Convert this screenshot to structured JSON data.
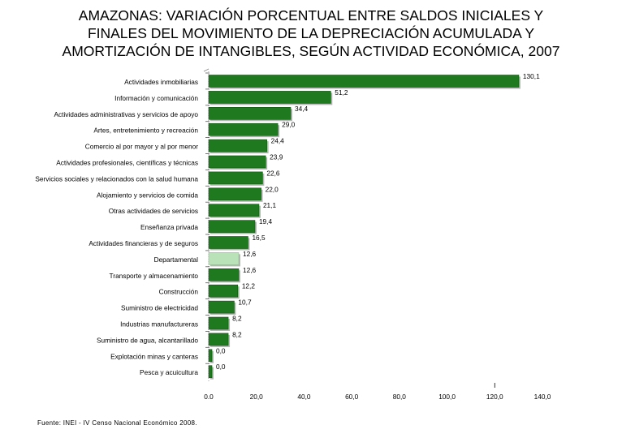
{
  "title_lines": [
    "AMAZONAS: VARIACIÓN PORCENTUAL ENTRE SALDOS INICIALES Y",
    "FINALES DEL MOVIMIENTO DE LA DEPRECIACIÓN ACUMULADA Y",
    "AMORTIZACIÓN DE INTANGIBLES, SEGÚN ACTIVIDAD ECONÓMICA, 2007"
  ],
  "source": "Fuente: INEI - IV Censo Nacional Económico 2008.",
  "colors": {
    "bar": "#1f7a1f",
    "bar_highlight": "#b9e2b9",
    "text": "#000000"
  },
  "chart_data": {
    "type": "bar",
    "orientation": "horizontal",
    "categories": [
      "Actividades inmobiliarias",
      "Información y comunicación",
      "Actividades administrativas y servicios de apoyo",
      "Artes, entretenimiento y recreación",
      "Comercio al por mayor y al por menor",
      "Actividades profesionales, científicas y técnicas",
      "Servicios sociales y relacionados con la salud humana",
      "Alojamiento y servicios de comida",
      "Otras actividades de servicios",
      "Enseñanza privada",
      "Actividades financieras y de seguros",
      "Departamental",
      "Transporte y almacenamiento",
      "Construcción",
      "Suministro de electricidad",
      "Industrias manufactureras",
      "Suministro de agua, alcantarillado",
      "Explotación minas y canteras",
      "Pesca y acuicultura"
    ],
    "values": [
      130.1,
      51.2,
      34.4,
      29.0,
      24.4,
      23.9,
      22.6,
      22.0,
      21.1,
      19.4,
      16.5,
      12.6,
      12.6,
      12.2,
      10.7,
      8.2,
      8.2,
      0.0,
      0.0
    ],
    "value_labels": [
      "130,1",
      "51,2",
      "34,4",
      "29,0",
      "24,4",
      "23,9",
      "22,6",
      "22,0",
      "21,1",
      "19,4",
      "16,5",
      "12,6",
      "12,6",
      "12,2",
      "10,7",
      "8,2",
      "8,2",
      "0,0",
      "0,0"
    ],
    "highlight_category": "Departamental",
    "x_ticks": [
      0,
      20,
      40,
      60,
      80,
      100,
      120,
      140
    ],
    "x_tick_labels": [
      "0.0",
      "20,0",
      "40,0",
      "60,0",
      "80,0",
      "100,0",
      "120,0",
      "140,0"
    ],
    "xlim": [
      0,
      140
    ],
    "xlabel": "",
    "ylabel": "",
    "grid": false,
    "legend": "none"
  }
}
